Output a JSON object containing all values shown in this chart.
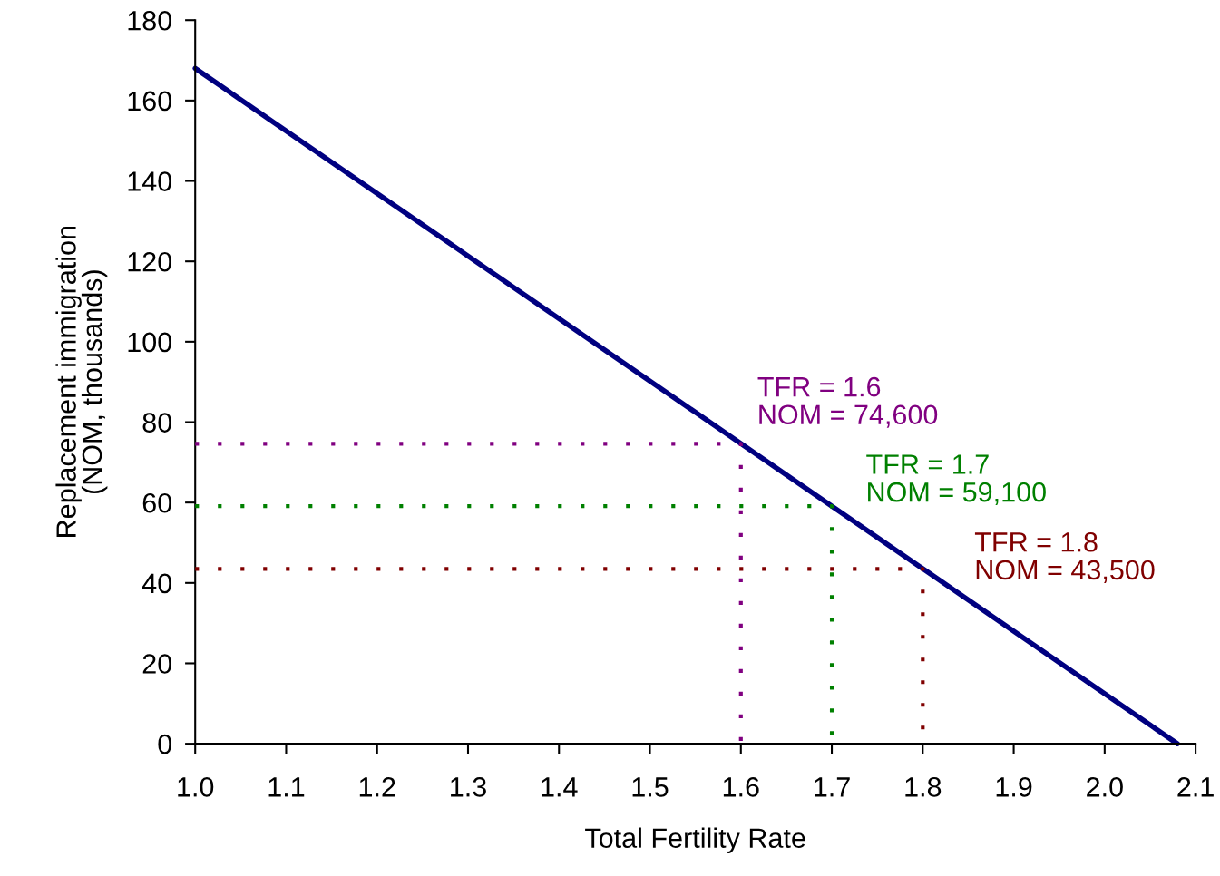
{
  "chart_data": {
    "type": "line",
    "xlabel": "Total Fertility Rate",
    "ylabel": "Replacement immigration\n(NOM, thousands)",
    "series": [
      {
        "color": "#000080",
        "x": [
          1.0,
          2.08
        ],
        "values": [
          168,
          0
        ],
        "line_style": "solid"
      },
      {
        "color": "#800080",
        "x": [
          1.0,
          1.6,
          1.6
        ],
        "values": [
          74.6,
          74.6,
          0
        ],
        "line_style": "dotted"
      },
      {
        "color": "#008000",
        "x": [
          1.0,
          1.7,
          1.7
        ],
        "values": [
          59.1,
          59.1,
          0
        ],
        "line_style": "dotted"
      },
      {
        "color": "#800000",
        "x": [
          1.0,
          1.8,
          1.8
        ],
        "values": [
          43.5,
          43.5,
          0
        ],
        "line_style": "dotted"
      }
    ],
    "annotations": [
      {
        "text": "TFR = 1.6\nNOM = 74,600",
        "x": 1.6,
        "y": 74.6
      },
      {
        "text": "TFR = 1.7\nNOM = 59,100",
        "x": 1.7,
        "y": 59.1
      },
      {
        "text": "TFR = 1.8\nNOM = 43,500",
        "x": 1.8,
        "y": 43.5
      }
    ],
    "xlim": [
      1.0,
      2.1
    ],
    "ylim": [
      0,
      180
    ],
    "xticks": [
      {
        "value": 1.0,
        "label": "1.0"
      },
      1.1,
      1.2,
      1.3,
      1.4,
      1.5,
      1.6,
      1.7,
      1.8,
      1.9,
      {
        "value": 2.0,
        "label": "2.0"
      },
      2.1
    ],
    "yticks": [
      0,
      20,
      40,
      60,
      80,
      100,
      120,
      140,
      160,
      180
    ],
    "grid": false,
    "legend": false,
    "marker": "none"
  }
}
